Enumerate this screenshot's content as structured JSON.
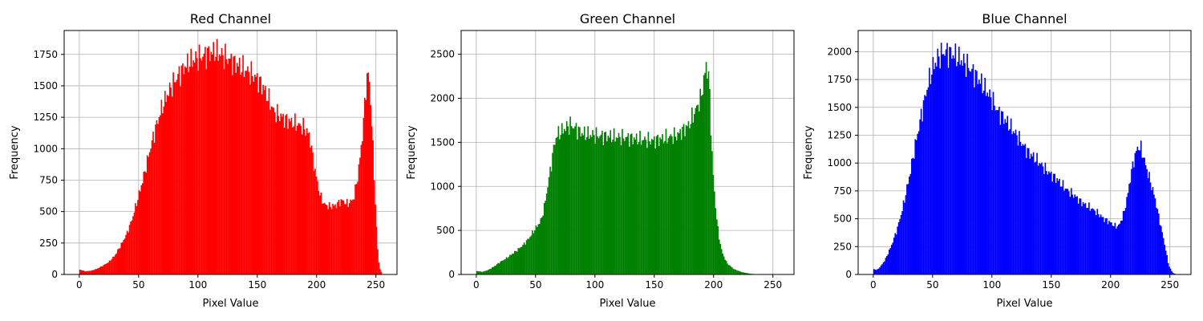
{
  "chart_data": [
    {
      "type": "bar",
      "title": "Red Channel",
      "xlabel": "Pixel Value",
      "ylabel": "Frequency",
      "color": "#ff0000",
      "xlim": [
        -12.75,
        267.75
      ],
      "ylim": [
        0,
        1940
      ],
      "xticks": [
        0,
        50,
        100,
        150,
        200,
        250
      ],
      "yticks": [
        0,
        250,
        500,
        750,
        1000,
        1250,
        1500,
        1750
      ],
      "grid": true,
      "knots": [
        [
          0,
          40
        ],
        [
          5,
          25
        ],
        [
          10,
          30
        ],
        [
          15,
          45
        ],
        [
          20,
          70
        ],
        [
          25,
          100
        ],
        [
          30,
          150
        ],
        [
          35,
          230
        ],
        [
          40,
          320
        ],
        [
          45,
          450
        ],
        [
          50,
          620
        ],
        [
          55,
          800
        ],
        [
          60,
          1000
        ],
        [
          65,
          1180
        ],
        [
          70,
          1330
        ],
        [
          75,
          1440
        ],
        [
          80,
          1530
        ],
        [
          85,
          1600
        ],
        [
          90,
          1660
        ],
        [
          95,
          1700
        ],
        [
          100,
          1720
        ],
        [
          105,
          1740
        ],
        [
          110,
          1760
        ],
        [
          115,
          1770
        ],
        [
          120,
          1750
        ],
        [
          125,
          1720
        ],
        [
          130,
          1690
        ],
        [
          135,
          1660
        ],
        [
          140,
          1630
        ],
        [
          145,
          1600
        ],
        [
          150,
          1560
        ],
        [
          155,
          1500
        ],
        [
          160,
          1400
        ],
        [
          165,
          1290
        ],
        [
          170,
          1260
        ],
        [
          175,
          1230
        ],
        [
          180,
          1210
        ],
        [
          185,
          1190
        ],
        [
          190,
          1170
        ],
        [
          195,
          1100
        ],
        [
          198,
          900
        ],
        [
          201,
          750
        ],
        [
          204,
          620
        ],
        [
          207,
          560
        ],
        [
          212,
          540
        ],
        [
          217,
          550
        ],
        [
          222,
          590
        ],
        [
          227,
          560
        ],
        [
          232,
          600
        ],
        [
          236,
          800
        ],
        [
          240,
          1150
        ],
        [
          243,
          1550
        ],
        [
          245,
          1600
        ],
        [
          247,
          1300
        ],
        [
          249,
          900
        ],
        [
          251,
          450
        ],
        [
          253,
          120
        ],
        [
          255,
          20
        ]
      ]
    },
    {
      "type": "bar",
      "title": "Green Channel",
      "xlabel": "Pixel Value",
      "ylabel": "Frequency",
      "color": "#008000",
      "xlim": [
        -12.75,
        267.75
      ],
      "ylim": [
        0,
        2770
      ],
      "xticks": [
        0,
        50,
        100,
        150,
        200,
        250
      ],
      "yticks": [
        0,
        500,
        1000,
        1500,
        2000,
        2500
      ],
      "grid": true,
      "knots": [
        [
          0,
          40
        ],
        [
          5,
          30
        ],
        [
          10,
          50
        ],
        [
          15,
          90
        ],
        [
          20,
          140
        ],
        [
          25,
          180
        ],
        [
          30,
          230
        ],
        [
          35,
          280
        ],
        [
          40,
          340
        ],
        [
          45,
          420
        ],
        [
          50,
          520
        ],
        [
          55,
          620
        ],
        [
          58,
          800
        ],
        [
          61,
          1050
        ],
        [
          64,
          1300
        ],
        [
          66,
          1480
        ],
        [
          68,
          1580
        ],
        [
          70,
          1600
        ],
        [
          75,
          1660
        ],
        [
          80,
          1700
        ],
        [
          85,
          1650
        ],
        [
          90,
          1600
        ],
        [
          100,
          1580
        ],
        [
          110,
          1570
        ],
        [
          120,
          1560
        ],
        [
          130,
          1550
        ],
        [
          140,
          1530
        ],
        [
          150,
          1520
        ],
        [
          160,
          1550
        ],
        [
          170,
          1580
        ],
        [
          180,
          1700
        ],
        [
          185,
          1850
        ],
        [
          190,
          2000
        ],
        [
          193,
          2250
        ],
        [
          195,
          2400
        ],
        [
          197,
          2200
        ],
        [
          199,
          1500
        ],
        [
          201,
          1000
        ],
        [
          203,
          700
        ],
        [
          205,
          450
        ],
        [
          208,
          250
        ],
        [
          212,
          130
        ],
        [
          218,
          60
        ],
        [
          225,
          25
        ],
        [
          232,
          8
        ],
        [
          240,
          0
        ],
        [
          255,
          0
        ]
      ]
    },
    {
      "type": "bar",
      "title": "Blue Channel",
      "xlabel": "Pixel Value",
      "ylabel": "Frequency",
      "color": "#0000ff",
      "xlim": [
        -12.75,
        267.75
      ],
      "ylim": [
        0,
        2190
      ],
      "xticks": [
        0,
        50,
        100,
        150,
        200,
        250
      ],
      "yticks": [
        0,
        250,
        500,
        750,
        1000,
        1250,
        1500,
        1750,
        2000
      ],
      "grid": true,
      "knots": [
        [
          0,
          50
        ],
        [
          3,
          40
        ],
        [
          6,
          70
        ],
        [
          10,
          130
        ],
        [
          15,
          250
        ],
        [
          20,
          400
        ],
        [
          25,
          600
        ],
        [
          30,
          850
        ],
        [
          35,
          1130
        ],
        [
          40,
          1400
        ],
        [
          45,
          1650
        ],
        [
          50,
          1850
        ],
        [
          55,
          1950
        ],
        [
          60,
          2000
        ],
        [
          65,
          1990
        ],
        [
          70,
          1960
        ],
        [
          75,
          1920
        ],
        [
          80,
          1870
        ],
        [
          85,
          1810
        ],
        [
          90,
          1740
        ],
        [
          95,
          1660
        ],
        [
          100,
          1580
        ],
        [
          105,
          1470
        ],
        [
          110,
          1410
        ],
        [
          115,
          1340
        ],
        [
          120,
          1270
        ],
        [
          125,
          1190
        ],
        [
          130,
          1110
        ],
        [
          135,
          1060
        ],
        [
          140,
          1010
        ],
        [
          145,
          950
        ],
        [
          150,
          900
        ],
        [
          155,
          860
        ],
        [
          160,
          800
        ],
        [
          165,
          750
        ],
        [
          170,
          710
        ],
        [
          175,
          660
        ],
        [
          180,
          620
        ],
        [
          185,
          590
        ],
        [
          190,
          550
        ],
        [
          195,
          500
        ],
        [
          200,
          470
        ],
        [
          205,
          430
        ],
        [
          208,
          440
        ],
        [
          212,
          550
        ],
        [
          215,
          700
        ],
        [
          218,
          900
        ],
        [
          221,
          1050
        ],
        [
          224,
          1150
        ],
        [
          227,
          1120
        ],
        [
          230,
          1000
        ],
        [
          234,
          850
        ],
        [
          238,
          700
        ],
        [
          242,
          500
        ],
        [
          246,
          300
        ],
        [
          250,
          80
        ],
        [
          253,
          20
        ],
        [
          255,
          5
        ]
      ]
    }
  ]
}
